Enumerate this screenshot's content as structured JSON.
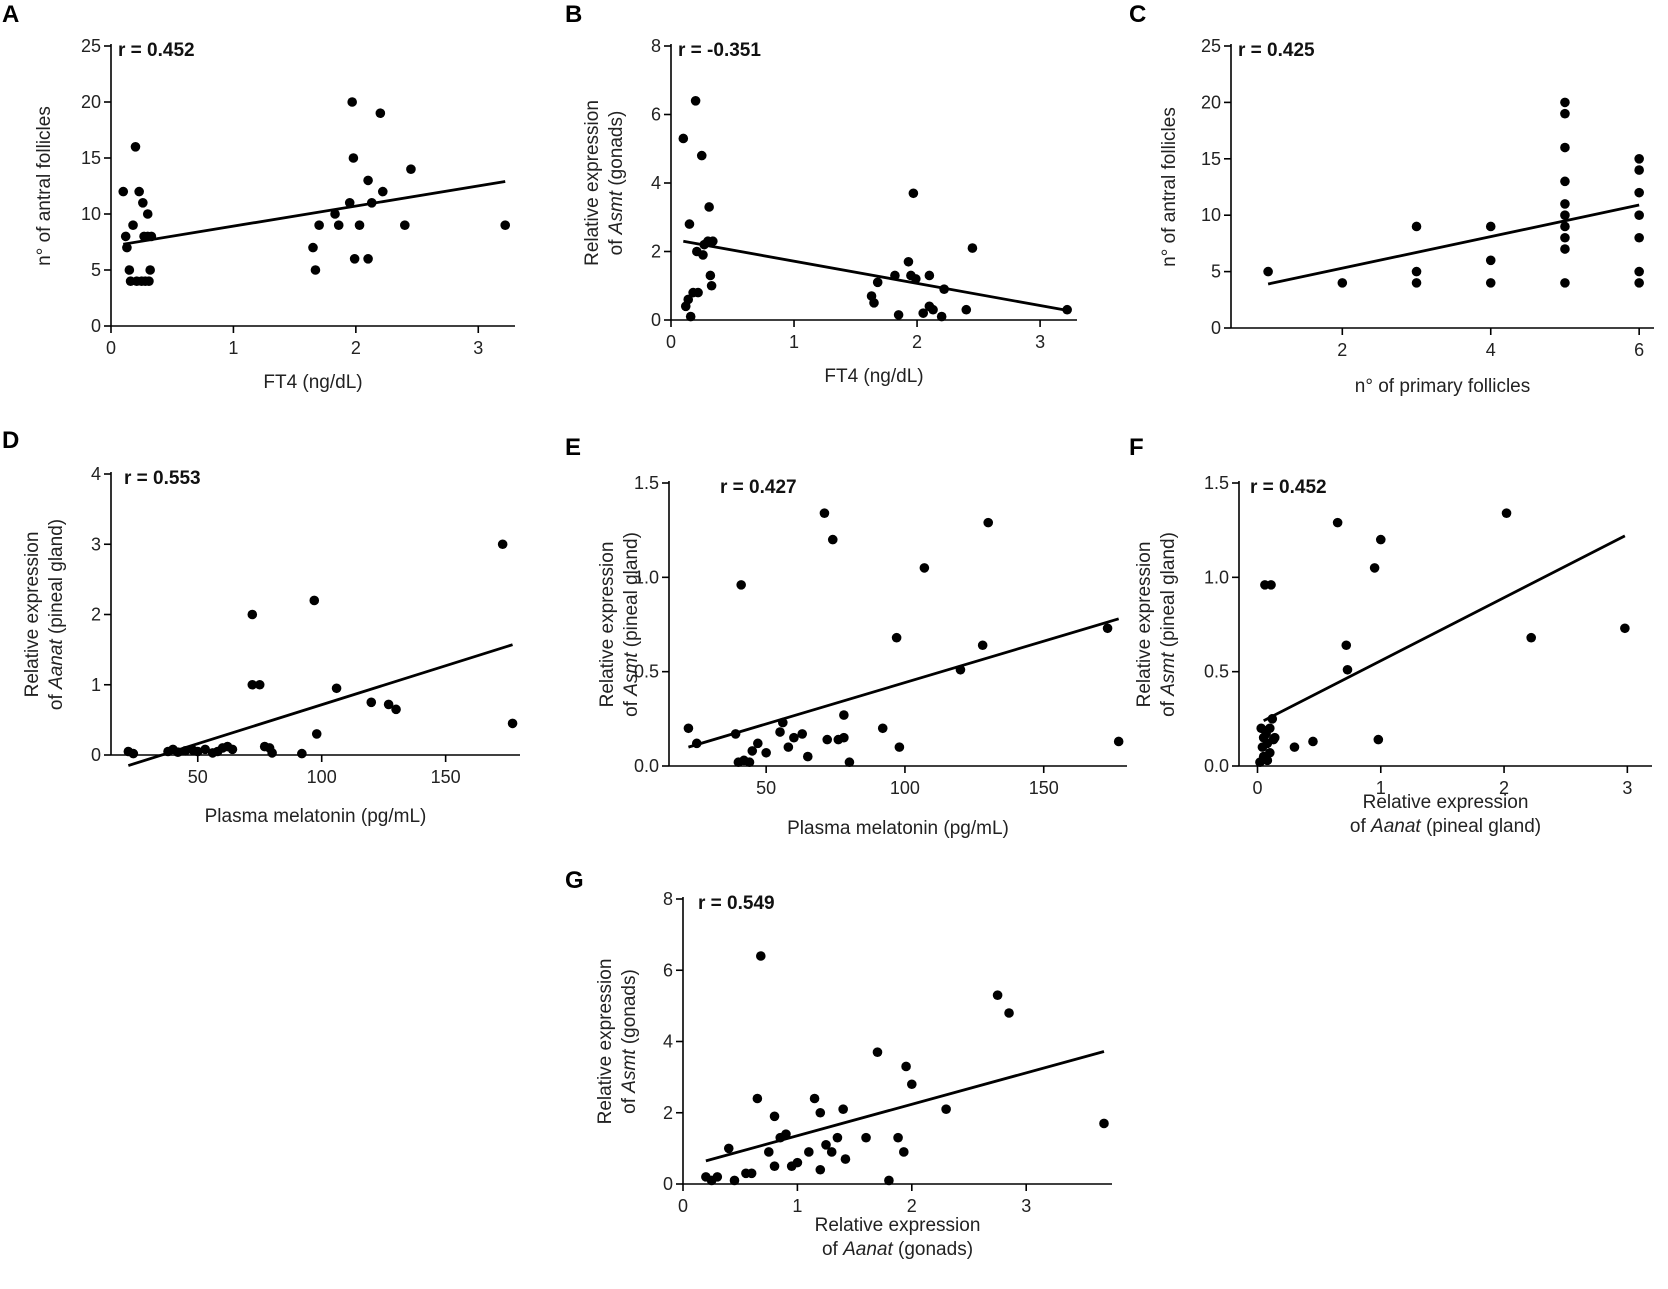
{
  "colors": {
    "ink": "#000000",
    "text": "#222222"
  },
  "chart_data": [
    {
      "type": "scatter",
      "panel": "A",
      "r_label": "r = 0.452",
      "xlabel": "FT4 (ng/dL)",
      "ylabel": {
        "line1": "n° of antral follicles"
      },
      "xlim": [
        0,
        3.3
      ],
      "ylim": [
        0,
        25
      ],
      "xticks": [
        0,
        1,
        2,
        3
      ],
      "yticks": [
        0,
        5,
        10,
        15,
        20,
        25
      ],
      "points": [
        [
          0.1,
          12
        ],
        [
          0.12,
          8
        ],
        [
          0.13,
          7
        ],
        [
          0.15,
          5
        ],
        [
          0.16,
          4
        ],
        [
          0.18,
          9
        ],
        [
          0.2,
          16
        ],
        [
          0.21,
          4
        ],
        [
          0.23,
          12
        ],
        [
          0.25,
          4
        ],
        [
          0.26,
          11
        ],
        [
          0.27,
          8
        ],
        [
          0.28,
          4
        ],
        [
          0.3,
          10
        ],
        [
          0.3,
          8
        ],
        [
          0.31,
          4
        ],
        [
          0.32,
          5
        ],
        [
          0.33,
          8
        ],
        [
          1.65,
          7
        ],
        [
          1.67,
          5
        ],
        [
          1.7,
          9
        ],
        [
          1.83,
          10
        ],
        [
          1.86,
          9
        ],
        [
          1.95,
          11
        ],
        [
          1.97,
          20
        ],
        [
          1.98,
          15
        ],
        [
          1.99,
          6
        ],
        [
          2.03,
          9
        ],
        [
          2.1,
          6
        ],
        [
          2.1,
          13
        ],
        [
          2.13,
          11
        ],
        [
          2.2,
          19
        ],
        [
          2.22,
          12
        ],
        [
          2.4,
          9
        ],
        [
          2.45,
          14
        ],
        [
          3.22,
          9
        ]
      ],
      "fit": [
        [
          0.1,
          7.3
        ],
        [
          3.22,
          12.9
        ]
      ]
    },
    {
      "type": "scatter",
      "panel": "B",
      "r_label": "r = -0.351",
      "xlabel": "FT4 (ng/dL)",
      "ylabel": {
        "line1": "Relative expression",
        "pre": "of ",
        "italic": "Asmt",
        "post": " (gonads)"
      },
      "xlim": [
        0,
        3.3
      ],
      "ylim": [
        0,
        8
      ],
      "xticks": [
        0,
        1,
        2,
        3
      ],
      "yticks": [
        0,
        2,
        4,
        6,
        8
      ],
      "points": [
        [
          0.1,
          5.3
        ],
        [
          0.12,
          0.4
        ],
        [
          0.14,
          0.6
        ],
        [
          0.15,
          2.8
        ],
        [
          0.16,
          0.1
        ],
        [
          0.18,
          0.8
        ],
        [
          0.2,
          6.4
        ],
        [
          0.21,
          2.0
        ],
        [
          0.22,
          0.8
        ],
        [
          0.25,
          4.8
        ],
        [
          0.26,
          1.9
        ],
        [
          0.27,
          2.2
        ],
        [
          0.3,
          2.3
        ],
        [
          0.31,
          3.3
        ],
        [
          0.32,
          1.3
        ],
        [
          0.33,
          1.0
        ],
        [
          0.34,
          2.3
        ],
        [
          1.63,
          0.7
        ],
        [
          1.65,
          0.5
        ],
        [
          1.68,
          1.1
        ],
        [
          1.82,
          1.3
        ],
        [
          1.85,
          0.15
        ],
        [
          1.93,
          1.7
        ],
        [
          1.95,
          1.3
        ],
        [
          1.97,
          3.7
        ],
        [
          1.99,
          1.2
        ],
        [
          2.05,
          0.2
        ],
        [
          2.1,
          1.3
        ],
        [
          2.1,
          0.4
        ],
        [
          2.13,
          0.3
        ],
        [
          2.2,
          0.1
        ],
        [
          2.22,
          0.9
        ],
        [
          2.4,
          0.3
        ],
        [
          2.45,
          2.1
        ],
        [
          3.22,
          0.3
        ]
      ],
      "fit": [
        [
          0.1,
          2.3
        ],
        [
          3.22,
          0.28
        ]
      ]
    },
    {
      "type": "scatter",
      "panel": "C",
      "r_label": "r = 0.425",
      "xlabel": "n° of primary follicles",
      "ylabel": {
        "line1": "n° of antral follicles"
      },
      "xlim": [
        0.5,
        6.2
      ],
      "ylim": [
        0,
        25
      ],
      "xticks": [
        2,
        4,
        6
      ],
      "yticks": [
        0,
        5,
        10,
        15,
        20,
        25
      ],
      "points": [
        [
          1,
          5
        ],
        [
          2,
          4
        ],
        [
          3,
          9
        ],
        [
          3,
          5
        ],
        [
          3,
          4
        ],
        [
          4,
          9
        ],
        [
          4,
          6
        ],
        [
          4,
          4
        ],
        [
          5,
          20
        ],
        [
          5,
          19
        ],
        [
          5,
          16
        ],
        [
          5,
          13
        ],
        [
          5,
          11
        ],
        [
          5,
          10
        ],
        [
          5,
          9
        ],
        [
          5,
          8
        ],
        [
          5,
          7
        ],
        [
          5,
          4
        ],
        [
          6,
          15
        ],
        [
          6,
          14
        ],
        [
          6,
          12
        ],
        [
          6,
          10
        ],
        [
          6,
          8
        ],
        [
          6,
          5
        ],
        [
          6,
          4
        ]
      ],
      "fit": [
        [
          1,
          3.9
        ],
        [
          6,
          10.9
        ]
      ]
    },
    {
      "type": "scatter",
      "panel": "D",
      "r_label": "r = 0.553",
      "xlabel": "Plasma melatonin (pg/mL)",
      "ylabel": {
        "line1": "Relative expression",
        "pre": "of ",
        "italic": "Aanat",
        "post": " (pineal gland)"
      },
      "xlim": [
        15,
        180
      ],
      "ylim": [
        0,
        4
      ],
      "xticks": [
        50,
        100,
        150
      ],
      "yticks": [
        0,
        1,
        2,
        3,
        4
      ],
      "points": [
        [
          22,
          0.05
        ],
        [
          24,
          0.02
        ],
        [
          38,
          0.05
        ],
        [
          40,
          0.08
        ],
        [
          42,
          0.04
        ],
        [
          45,
          0.06
        ],
        [
          48,
          0.07
        ],
        [
          50,
          0.05
        ],
        [
          53,
          0.08
        ],
        [
          56,
          0.03
        ],
        [
          58,
          0.05
        ],
        [
          60,
          0.1
        ],
        [
          62,
          0.12
        ],
        [
          64,
          0.08
        ],
        [
          72,
          2.0
        ],
        [
          72,
          1.0
        ],
        [
          75,
          1.0
        ],
        [
          77,
          0.12
        ],
        [
          79,
          0.1
        ],
        [
          80,
          0.03
        ],
        [
          92,
          0.02
        ],
        [
          97,
          2.2
        ],
        [
          98,
          0.3
        ],
        [
          106,
          0.95
        ],
        [
          120,
          0.75
        ],
        [
          127,
          0.72
        ],
        [
          130,
          0.65
        ],
        [
          173,
          3.0
        ],
        [
          177,
          0.45
        ]
      ],
      "fit": [
        [
          22,
          -0.15
        ],
        [
          177,
          1.57
        ]
      ]
    },
    {
      "type": "scatter",
      "panel": "E",
      "r_label": "r = 0.427",
      "xlabel": "Plasma melatonin (pg/mL)",
      "ylabel": {
        "line1": "Relative expression",
        "pre": "of ",
        "italic": "Asmt",
        "post": " (pineal gland)"
      },
      "xlim": [
        15,
        180
      ],
      "ylim": [
        0,
        1.5
      ],
      "xticks": [
        50,
        100,
        150
      ],
      "yticks": [
        0,
        0.5,
        1.0,
        1.5
      ],
      "ytick_labels": [
        "0.0",
        "0.5",
        "1.0",
        "1.5"
      ],
      "points": [
        [
          22,
          0.2
        ],
        [
          25,
          0.12
        ],
        [
          39,
          0.17
        ],
        [
          40,
          0.02
        ],
        [
          41,
          0.96
        ],
        [
          42,
          0.03
        ],
        [
          44,
          0.02
        ],
        [
          45,
          0.08
        ],
        [
          47,
          0.12
        ],
        [
          50,
          0.07
        ],
        [
          55,
          0.18
        ],
        [
          56,
          0.23
        ],
        [
          58,
          0.1
        ],
        [
          60,
          0.15
        ],
        [
          63,
          0.17
        ],
        [
          65,
          0.05
        ],
        [
          71,
          1.34
        ],
        [
          72,
          0.14
        ],
        [
          74,
          1.2
        ],
        [
          76,
          0.14
        ],
        [
          78,
          0.15
        ],
        [
          78,
          0.27
        ],
        [
          80,
          0.02
        ],
        [
          92,
          0.2
        ],
        [
          97,
          0.68
        ],
        [
          98,
          0.1
        ],
        [
          107,
          1.05
        ],
        [
          120,
          0.51
        ],
        [
          128,
          0.64
        ],
        [
          130,
          1.29
        ],
        [
          173,
          0.73
        ],
        [
          177,
          0.13
        ]
      ],
      "fit": [
        [
          22,
          0.1
        ],
        [
          177,
          0.78
        ]
      ]
    },
    {
      "type": "scatter",
      "panel": "F",
      "r_label": "r = 0.452",
      "xlabel": {
        "line1": "Relative expression",
        "pre": "of ",
        "italic": "Aanat",
        "post": " (pineal gland)"
      },
      "ylabel": {
        "line1": "Relative expression",
        "pre": "of ",
        "italic": "Asmt",
        "post": " (pineal gland)"
      },
      "xlim": [
        -0.15,
        3.2
      ],
      "ylim": [
        0,
        1.5
      ],
      "xticks": [
        0,
        1,
        2,
        3
      ],
      "yticks": [
        0,
        0.5,
        1.0,
        1.5
      ],
      "ytick_labels": [
        "0.0",
        "0.5",
        "1.0",
        "1.5"
      ],
      "points": [
        [
          0.02,
          0.02
        ],
        [
          0.03,
          0.2
        ],
        [
          0.04,
          0.1
        ],
        [
          0.05,
          0.15
        ],
        [
          0.05,
          0.05
        ],
        [
          0.06,
          0.96
        ],
        [
          0.07,
          0.17
        ],
        [
          0.08,
          0.12
        ],
        [
          0.08,
          0.03
        ],
        [
          0.1,
          0.2
        ],
        [
          0.1,
          0.07
        ],
        [
          0.11,
          0.96
        ],
        [
          0.12,
          0.25
        ],
        [
          0.13,
          0.14
        ],
        [
          0.14,
          0.15
        ],
        [
          0.3,
          0.1
        ],
        [
          0.45,
          0.13
        ],
        [
          0.65,
          1.29
        ],
        [
          0.72,
          0.64
        ],
        [
          0.73,
          0.51
        ],
        [
          0.95,
          1.05
        ],
        [
          0.98,
          0.14
        ],
        [
          1.0,
          1.2
        ],
        [
          2.02,
          1.34
        ],
        [
          2.22,
          0.68
        ],
        [
          2.98,
          0.73
        ]
      ],
      "fit": [
        [
          0.05,
          0.24
        ],
        [
          2.98,
          1.22
        ]
      ]
    },
    {
      "type": "scatter",
      "panel": "G",
      "r_label": "r = 0.549",
      "xlabel": {
        "line1": "Relative expression",
        "pre": "of ",
        "italic": "Aanat",
        "post": " (gonads)"
      },
      "ylabel": {
        "line1": "Relative expression",
        "pre": "of ",
        "italic": "Asmt",
        "post": " (gonads)"
      },
      "xlim": [
        0,
        3.75
      ],
      "ylim": [
        0,
        8
      ],
      "xticks": [
        0,
        1,
        2,
        3
      ],
      "yticks": [
        0,
        2,
        4,
        6,
        8
      ],
      "points": [
        [
          0.2,
          0.2
        ],
        [
          0.25,
          0.1
        ],
        [
          0.3,
          0.2
        ],
        [
          0.4,
          1.0
        ],
        [
          0.45,
          0.1
        ],
        [
          0.55,
          0.3
        ],
        [
          0.6,
          0.3
        ],
        [
          0.65,
          2.4
        ],
        [
          0.68,
          6.4
        ],
        [
          0.75,
          0.9
        ],
        [
          0.8,
          1.9
        ],
        [
          0.8,
          0.5
        ],
        [
          0.85,
          1.3
        ],
        [
          0.9,
          1.4
        ],
        [
          0.95,
          0.5
        ],
        [
          1.0,
          0.6
        ],
        [
          1.1,
          0.9
        ],
        [
          1.15,
          2.4
        ],
        [
          1.2,
          2.0
        ],
        [
          1.2,
          0.4
        ],
        [
          1.25,
          1.1
        ],
        [
          1.3,
          0.9
        ],
        [
          1.35,
          1.3
        ],
        [
          1.4,
          2.1
        ],
        [
          1.42,
          0.7
        ],
        [
          1.6,
          1.3
        ],
        [
          1.7,
          3.7
        ],
        [
          1.8,
          0.1
        ],
        [
          1.88,
          1.3
        ],
        [
          1.93,
          0.9
        ],
        [
          1.95,
          3.3
        ],
        [
          2.0,
          2.8
        ],
        [
          2.3,
          2.1
        ],
        [
          2.75,
          5.3
        ],
        [
          2.85,
          4.8
        ],
        [
          3.68,
          1.7
        ]
      ],
      "fit": [
        [
          0.2,
          0.65
        ],
        [
          3.68,
          3.72
        ]
      ]
    }
  ]
}
